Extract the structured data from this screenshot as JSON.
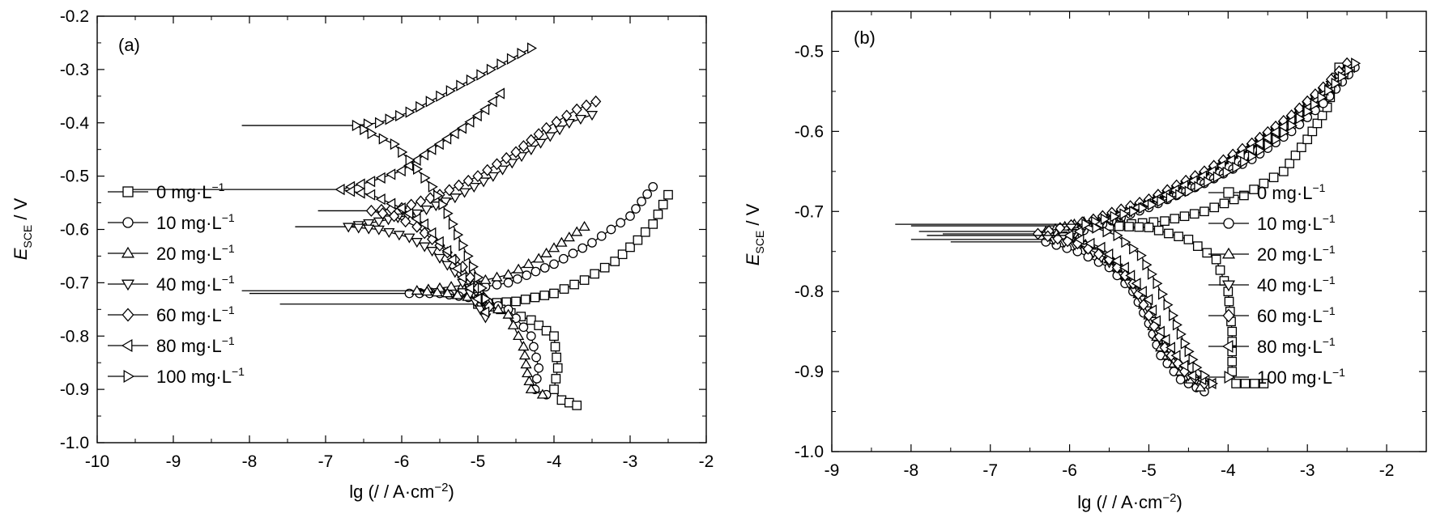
{
  "chart_data": [
    {
      "type": "line",
      "panel_label": "(a)",
      "xlabel": "lg (/ / A·cm⁻²)",
      "ylabel": "E SCE / V",
      "xlim": [
        -10,
        -2
      ],
      "ylim": [
        -1.0,
        -0.2
      ],
      "xticks": [
        "-10",
        "-9",
        "-8",
        "-7",
        "-6",
        "-5",
        "-4",
        "-3",
        "-2"
      ],
      "yticks": [
        "-0.2",
        "-0.3",
        "-0.4",
        "-0.5",
        "-0.6",
        "-0.7",
        "-0.8",
        "-0.9",
        "-1.0"
      ],
      "legend_position": "left",
      "series": [
        {
          "name": "0 mg·L⁻¹",
          "marker": "square",
          "corr_x": -7.6,
          "corr_y": -0.74,
          "anodic": [
            [
              -5.0,
              -0.74
            ],
            [
              -4.5,
              -0.735
            ],
            [
              -4.0,
              -0.72
            ],
            [
              -3.6,
              -0.695
            ],
            [
              -3.2,
              -0.66
            ],
            [
              -2.9,
              -0.62
            ],
            [
              -2.7,
              -0.59
            ],
            [
              -2.5,
              -0.535
            ]
          ],
          "cathodic": [
            [
              -5.0,
              -0.74
            ],
            [
              -4.7,
              -0.75
            ],
            [
              -4.3,
              -0.77
            ],
            [
              -4.0,
              -0.8
            ],
            [
              -3.95,
              -0.86
            ],
            [
              -4.0,
              -0.9
            ],
            [
              -3.9,
              -0.92
            ],
            [
              -3.7,
              -0.93
            ]
          ]
        },
        {
          "name": "10 mg·L⁻¹",
          "marker": "circle",
          "corr_x": -8.0,
          "corr_y": -0.72,
          "anodic": [
            [
              -5.9,
              -0.72
            ],
            [
              -5.2,
              -0.715
            ],
            [
              -4.6,
              -0.7
            ],
            [
              -4.0,
              -0.665
            ],
            [
              -3.5,
              -0.625
            ],
            [
              -3.0,
              -0.575
            ],
            [
              -2.7,
              -0.52
            ]
          ],
          "cathodic": [
            [
              -5.9,
              -0.72
            ],
            [
              -5.5,
              -0.72
            ],
            [
              -5.0,
              -0.73
            ],
            [
              -4.6,
              -0.75
            ],
            [
              -4.3,
              -0.8
            ],
            [
              -4.2,
              -0.86
            ],
            [
              -4.25,
              -0.9
            ],
            [
              -4.1,
              -0.91
            ]
          ]
        },
        {
          "name": "20 mg·L⁻¹",
          "marker": "triangle-up",
          "corr_x": -8.1,
          "corr_y": -0.715,
          "anodic": [
            [
              -5.8,
              -0.715
            ],
            [
              -5.2,
              -0.705
            ],
            [
              -4.6,
              -0.685
            ],
            [
              -4.2,
              -0.655
            ],
            [
              -3.9,
              -0.625
            ],
            [
              -3.6,
              -0.595
            ]
          ],
          "cathodic": [
            [
              -5.8,
              -0.715
            ],
            [
              -5.4,
              -0.72
            ],
            [
              -5.0,
              -0.73
            ],
            [
              -4.6,
              -0.76
            ],
            [
              -4.4,
              -0.82
            ],
            [
              -4.35,
              -0.87
            ],
            [
              -4.3,
              -0.9
            ],
            [
              -4.15,
              -0.91
            ]
          ]
        },
        {
          "name": "40 mg·L⁻¹",
          "marker": "triangle-down",
          "corr_x": -7.4,
          "corr_y": -0.595,
          "anodic": [
            [
              -6.7,
              -0.595
            ],
            [
              -6.3,
              -0.585
            ],
            [
              -5.8,
              -0.57
            ],
            [
              -5.3,
              -0.54
            ],
            [
              -4.8,
              -0.5
            ],
            [
              -4.3,
              -0.45
            ],
            [
              -3.8,
              -0.4
            ],
            [
              -3.5,
              -0.385
            ]
          ],
          "cathodic": [
            [
              -6.7,
              -0.595
            ],
            [
              -6.3,
              -0.6
            ],
            [
              -5.9,
              -0.615
            ],
            [
              -5.6,
              -0.64
            ],
            [
              -5.3,
              -0.68
            ],
            [
              -5.1,
              -0.72
            ],
            [
              -4.9,
              -0.765
            ]
          ]
        },
        {
          "name": "60 mg·L⁻¹",
          "marker": "diamond",
          "corr_x": -7.1,
          "corr_y": -0.565,
          "anodic": [
            [
              -6.4,
              -0.565
            ],
            [
              -6.0,
              -0.56
            ],
            [
              -5.5,
              -0.535
            ],
            [
              -5.0,
              -0.5
            ],
            [
              -4.5,
              -0.455
            ],
            [
              -4.1,
              -0.41
            ],
            [
              -3.7,
              -0.375
            ],
            [
              -3.45,
              -0.36
            ]
          ],
          "cathodic": [
            [
              -6.4,
              -0.565
            ],
            [
              -6.1,
              -0.575
            ],
            [
              -5.8,
              -0.595
            ],
            [
              -5.5,
              -0.63
            ],
            [
              -5.2,
              -0.67
            ],
            [
              -5.0,
              -0.71
            ],
            [
              -4.85,
              -0.745
            ]
          ]
        },
        {
          "name": "80 mg·L⁻¹",
          "marker": "triangle-left",
          "corr_x": -9.55,
          "corr_y": -0.525,
          "anodic": [
            [
              -6.8,
              -0.525
            ],
            [
              -6.4,
              -0.51
            ],
            [
              -6.0,
              -0.49
            ],
            [
              -5.6,
              -0.45
            ],
            [
              -5.2,
              -0.41
            ],
            [
              -4.9,
              -0.375
            ],
            [
              -4.7,
              -0.345
            ]
          ],
          "cathodic": [
            [
              -6.8,
              -0.525
            ],
            [
              -6.4,
              -0.535
            ],
            [
              -6.0,
              -0.56
            ],
            [
              -5.7,
              -0.59
            ],
            [
              -5.4,
              -0.64
            ],
            [
              -5.2,
              -0.69
            ],
            [
              -5.0,
              -0.73
            ],
            [
              -4.9,
              -0.755
            ]
          ]
        },
        {
          "name": "100 mg·L⁻¹",
          "marker": "triangle-right",
          "corr_x": -8.1,
          "corr_y": -0.405,
          "anodic": [
            [
              -6.6,
              -0.405
            ],
            [
              -6.3,
              -0.4
            ],
            [
              -5.9,
              -0.38
            ],
            [
              -5.5,
              -0.35
            ],
            [
              -5.1,
              -0.32
            ],
            [
              -4.7,
              -0.29
            ],
            [
              -4.3,
              -0.26
            ]
          ],
          "cathodic": [
            [
              -6.6,
              -0.405
            ],
            [
              -6.4,
              -0.42
            ],
            [
              -6.1,
              -0.44
            ],
            [
              -5.9,
              -0.47
            ],
            [
              -5.6,
              -0.52
            ],
            [
              -5.4,
              -0.57
            ],
            [
              -5.2,
              -0.63
            ],
            [
              -5.0,
              -0.69
            ],
            [
              -4.9,
              -0.73
            ]
          ]
        }
      ]
    },
    {
      "type": "line",
      "panel_label": "(b)",
      "xlabel": "lg (/ / A·cm⁻²)",
      "ylabel": "E SCE / V",
      "xlim": [
        -9,
        -1.5
      ],
      "ylim": [
        -1.0,
        -0.45
      ],
      "xticks": [
        "-9",
        "-8",
        "-7",
        "-6",
        "-5",
        "-4",
        "-3",
        "-2"
      ],
      "yticks": [
        "-0.5",
        "-0.6",
        "-0.7",
        "-0.8",
        "-0.9",
        "-1.0"
      ],
      "legend_position": "right",
      "series": [
        {
          "name": "0 mg·L⁻¹",
          "marker": "square",
          "corr_x": -8.0,
          "corr_y": -0.718,
          "anodic": [
            [
              -5.5,
              -0.718
            ],
            [
              -4.8,
              -0.712
            ],
            [
              -4.3,
              -0.7
            ],
            [
              -3.8,
              -0.68
            ],
            [
              -3.3,
              -0.65
            ],
            [
              -3.0,
              -0.61
            ],
            [
              -2.75,
              -0.57
            ],
            [
              -2.6,
              -0.52
            ]
          ],
          "cathodic": [
            [
              -5.5,
              -0.718
            ],
            [
              -5.0,
              -0.72
            ],
            [
              -4.5,
              -0.735
            ],
            [
              -4.15,
              -0.76
            ],
            [
              -4.0,
              -0.8
            ],
            [
              -3.95,
              -0.85
            ],
            [
              -3.95,
              -0.9
            ],
            [
              -3.9,
              -0.915
            ],
            [
              -3.55,
              -0.915
            ]
          ]
        },
        {
          "name": "10 mg·L⁻¹",
          "marker": "circle",
          "corr_x": -7.5,
          "corr_y": -0.738,
          "anodic": [
            [
              -6.3,
              -0.738
            ],
            [
              -5.7,
              -0.72
            ],
            [
              -5.0,
              -0.695
            ],
            [
              -4.3,
              -0.665
            ],
            [
              -3.7,
              -0.635
            ],
            [
              -3.2,
              -0.6
            ],
            [
              -2.8,
              -0.565
            ],
            [
              -2.4,
              -0.52
            ]
          ],
          "cathodic": [
            [
              -6.3,
              -0.738
            ],
            [
              -5.9,
              -0.75
            ],
            [
              -5.5,
              -0.77
            ],
            [
              -5.2,
              -0.8
            ],
            [
              -5.0,
              -0.84
            ],
            [
              -4.85,
              -0.88
            ],
            [
              -4.6,
              -0.91
            ],
            [
              -4.3,
              -0.925
            ]
          ]
        },
        {
          "name": "20 mg·L⁻¹",
          "marker": "triangle-up",
          "corr_x": -7.9,
          "corr_y": -0.725,
          "anodic": [
            [
              -6.3,
              -0.725
            ],
            [
              -5.7,
              -0.71
            ],
            [
              -5.0,
              -0.685
            ],
            [
              -4.3,
              -0.65
            ],
            [
              -3.7,
              -0.615
            ],
            [
              -3.2,
              -0.58
            ],
            [
              -2.8,
              -0.55
            ],
            [
              -2.5,
              -0.52
            ]
          ],
          "cathodic": [
            [
              -6.3,
              -0.725
            ],
            [
              -5.9,
              -0.735
            ],
            [
              -5.5,
              -0.76
            ],
            [
              -5.2,
              -0.79
            ],
            [
              -5.0,
              -0.83
            ],
            [
              -4.85,
              -0.87
            ],
            [
              -4.6,
              -0.9
            ],
            [
              -4.35,
              -0.92
            ]
          ]
        },
        {
          "name": "40 mg·L⁻¹",
          "marker": "triangle-down",
          "corr_x": -8.0,
          "corr_y": -0.735,
          "anodic": [
            [
              -6.2,
              -0.735
            ],
            [
              -5.6,
              -0.715
            ],
            [
              -5.0,
              -0.69
            ],
            [
              -4.3,
              -0.655
            ],
            [
              -3.7,
              -0.62
            ],
            [
              -3.2,
              -0.585
            ],
            [
              -2.8,
              -0.55
            ],
            [
              -2.5,
              -0.525
            ]
          ],
          "cathodic": [
            [
              -6.2,
              -0.735
            ],
            [
              -5.8,
              -0.745
            ],
            [
              -5.4,
              -0.77
            ],
            [
              -5.1,
              -0.81
            ],
            [
              -4.9,
              -0.85
            ],
            [
              -4.75,
              -0.88
            ],
            [
              -4.5,
              -0.905
            ],
            [
              -4.3,
              -0.915
            ]
          ]
        },
        {
          "name": "60 mg·L⁻¹",
          "marker": "diamond",
          "corr_x": -7.6,
          "corr_y": -0.728,
          "anodic": [
            [
              -6.4,
              -0.728
            ],
            [
              -5.7,
              -0.71
            ],
            [
              -5.0,
              -0.685
            ],
            [
              -4.3,
              -0.65
            ],
            [
              -3.7,
              -0.615
            ],
            [
              -3.2,
              -0.58
            ],
            [
              -2.8,
              -0.545
            ],
            [
              -2.5,
              -0.515
            ]
          ],
          "cathodic": [
            [
              -6.4,
              -0.728
            ],
            [
              -5.9,
              -0.74
            ],
            [
              -5.5,
              -0.76
            ],
            [
              -5.2,
              -0.79
            ],
            [
              -5.0,
              -0.83
            ],
            [
              -4.8,
              -0.87
            ],
            [
              -4.55,
              -0.9
            ],
            [
              -4.3,
              -0.915
            ]
          ]
        },
        {
          "name": "80 mg·L⁻¹",
          "marker": "triangle-left",
          "corr_x": -7.8,
          "corr_y": -0.73,
          "anodic": [
            [
              -6.0,
              -0.73
            ],
            [
              -5.5,
              -0.71
            ],
            [
              -4.9,
              -0.685
            ],
            [
              -4.2,
              -0.65
            ],
            [
              -3.6,
              -0.615
            ],
            [
              -3.1,
              -0.58
            ],
            [
              -2.7,
              -0.545
            ],
            [
              -2.45,
              -0.52
            ]
          ],
          "cathodic": [
            [
              -6.0,
              -0.73
            ],
            [
              -5.6,
              -0.745
            ],
            [
              -5.3,
              -0.77
            ],
            [
              -5.0,
              -0.81
            ],
            [
              -4.85,
              -0.85
            ],
            [
              -4.65,
              -0.88
            ],
            [
              -4.45,
              -0.905
            ],
            [
              -4.2,
              -0.915
            ]
          ]
        },
        {
          "name": "100 mg·L⁻¹",
          "marker": "triangle-right",
          "corr_x": -8.2,
          "corr_y": -0.716,
          "anodic": [
            [
              -5.8,
              -0.716
            ],
            [
              -5.2,
              -0.7
            ],
            [
              -4.5,
              -0.675
            ],
            [
              -3.9,
              -0.645
            ],
            [
              -3.4,
              -0.61
            ],
            [
              -3.0,
              -0.575
            ],
            [
              -2.65,
              -0.54
            ],
            [
              -2.4,
              -0.515
            ]
          ],
          "cathodic": [
            [
              -5.8,
              -0.716
            ],
            [
              -5.4,
              -0.73
            ],
            [
              -5.1,
              -0.755
            ],
            [
              -4.9,
              -0.79
            ],
            [
              -4.7,
              -0.83
            ],
            [
              -4.55,
              -0.865
            ],
            [
              -4.4,
              -0.895
            ],
            [
              -4.2,
              -0.915
            ]
          ]
        }
      ]
    }
  ]
}
